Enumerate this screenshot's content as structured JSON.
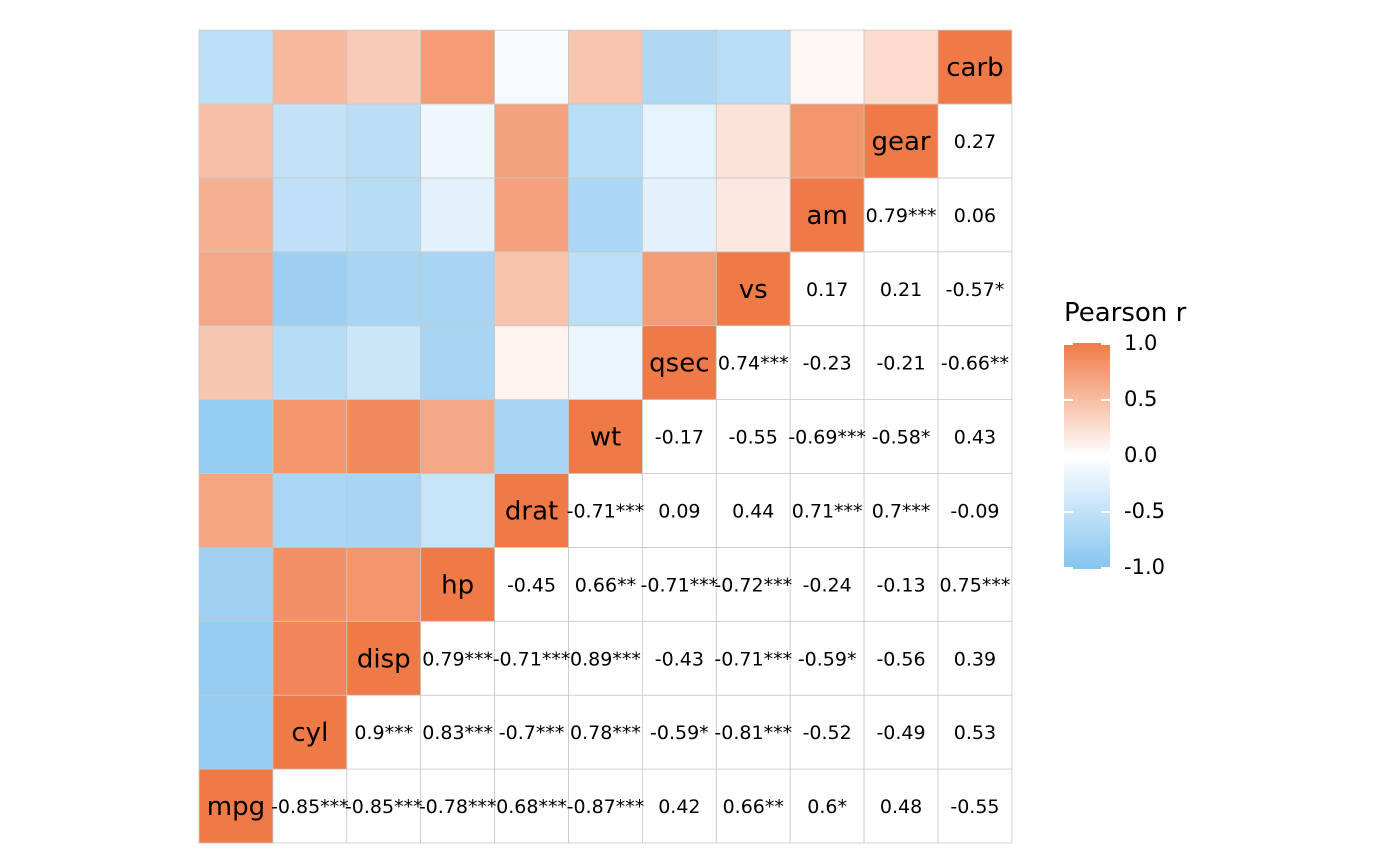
{
  "chart_data": {
    "type": "heatmap",
    "variables": [
      "mpg",
      "cyl",
      "disp",
      "hp",
      "drat",
      "wt",
      "qsec",
      "vs",
      "am",
      "gear",
      "carb"
    ],
    "matrix": [
      [
        1.0,
        -0.85,
        -0.85,
        -0.78,
        0.68,
        -0.87,
        0.42,
        0.66,
        0.6,
        0.48,
        -0.55
      ],
      [
        -0.85,
        1.0,
        0.9,
        0.83,
        -0.7,
        0.78,
        -0.59,
        -0.81,
        -0.52,
        -0.49,
        0.53
      ],
      [
        -0.85,
        0.9,
        1.0,
        0.79,
        -0.71,
        0.89,
        -0.43,
        -0.71,
        -0.59,
        -0.56,
        0.39
      ],
      [
        -0.78,
        0.83,
        0.79,
        1.0,
        -0.45,
        0.66,
        -0.71,
        -0.72,
        -0.24,
        -0.13,
        0.75
      ],
      [
        0.68,
        -0.7,
        -0.71,
        -0.45,
        1.0,
        -0.71,
        0.09,
        0.44,
        0.71,
        0.7,
        -0.09
      ],
      [
        -0.87,
        0.78,
        0.89,
        0.66,
        -0.71,
        1.0,
        -0.17,
        -0.55,
        -0.69,
        -0.58,
        0.43
      ],
      [
        0.42,
        -0.59,
        -0.43,
        -0.71,
        0.09,
        -0.17,
        1.0,
        0.74,
        -0.23,
        -0.21,
        -0.66
      ],
      [
        0.66,
        -0.81,
        -0.71,
        -0.72,
        0.44,
        -0.55,
        0.74,
        1.0,
        0.17,
        0.21,
        -0.57
      ],
      [
        0.6,
        -0.52,
        -0.59,
        -0.24,
        0.71,
        -0.69,
        -0.23,
        0.17,
        1.0,
        0.79,
        0.06
      ],
      [
        0.48,
        -0.49,
        -0.56,
        -0.13,
        0.7,
        -0.58,
        -0.21,
        0.21,
        0.79,
        1.0,
        0.27
      ],
      [
        -0.55,
        0.53,
        0.39,
        0.75,
        -0.09,
        0.43,
        -0.66,
        -0.57,
        0.06,
        0.27,
        1.0
      ]
    ],
    "labels": [
      [
        null,
        null,
        null,
        null,
        null,
        null,
        null,
        null,
        null,
        null,
        null
      ],
      [
        "-0.85***",
        null,
        null,
        null,
        null,
        null,
        null,
        null,
        null,
        null,
        null
      ],
      [
        "-0.85***",
        "0.9***",
        null,
        null,
        null,
        null,
        null,
        null,
        null,
        null,
        null
      ],
      [
        "-0.78***",
        "0.83***",
        "0.79***",
        null,
        null,
        null,
        null,
        null,
        null,
        null,
        null
      ],
      [
        "0.68***",
        "-0.7***",
        "-0.71***",
        "-0.45",
        null,
        null,
        null,
        null,
        null,
        null,
        null
      ],
      [
        "-0.87***",
        "0.78***",
        "0.89***",
        "0.66**",
        "-0.71***",
        null,
        null,
        null,
        null,
        null,
        null
      ],
      [
        "0.42",
        "-0.59*",
        "-0.43",
        "-0.71***",
        "0.09",
        "-0.17",
        null,
        null,
        null,
        null,
        null
      ],
      [
        "0.66**",
        "-0.81***",
        "-0.71***",
        "-0.72***",
        "0.44",
        "-0.55",
        "0.74***",
        null,
        null,
        null,
        null
      ],
      [
        "0.6*",
        "-0.52",
        "-0.59*",
        "-0.24",
        "0.71***",
        "-0.69***",
        "-0.23",
        "0.17",
        null,
        null,
        null
      ],
      [
        "0.48",
        "-0.49",
        "-0.56",
        "-0.13",
        "0.7***",
        "-0.58*",
        "-0.21",
        "0.21",
        "0.79***",
        null,
        null
      ],
      [
        "-0.55",
        "0.53",
        "0.39",
        "0.75***",
        "-0.09",
        "0.43",
        "-0.66**",
        "-0.57*",
        "0.06",
        "0.27",
        null
      ]
    ],
    "color_scale": {
      "low": "#85c4ef",
      "mid": "#ffffff",
      "high": "#ef7a47",
      "limits": [
        -1,
        1
      ]
    },
    "diagonal_color": "#ef7a47",
    "legend": {
      "title": "Pearson r",
      "position": "right",
      "ticks": [
        "1.0",
        "0.5",
        "0.0",
        "-0.5",
        "-1.0"
      ]
    }
  }
}
